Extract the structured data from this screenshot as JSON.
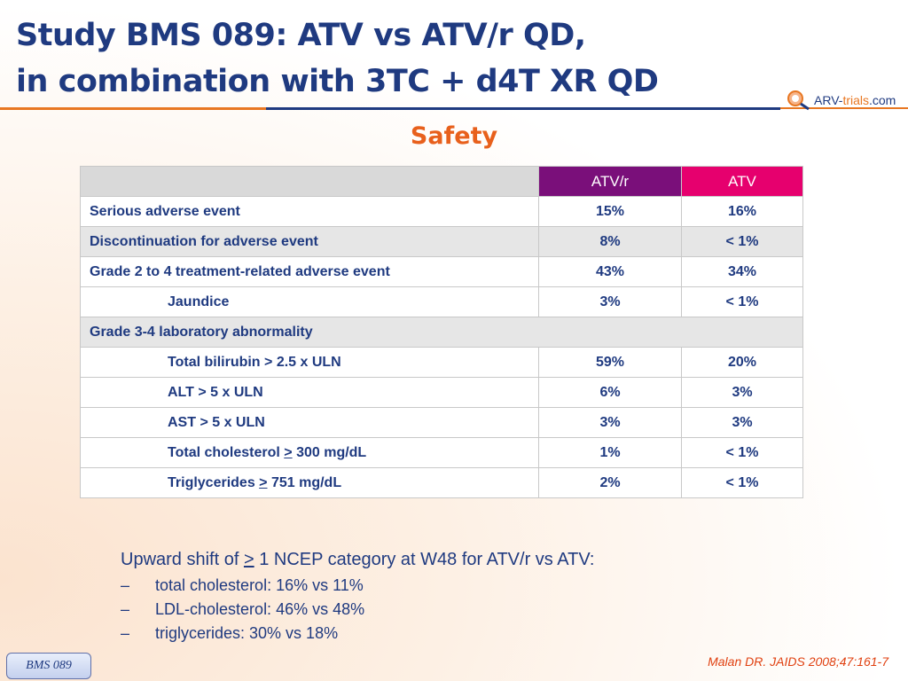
{
  "title": {
    "line1": "Study BMS 089: ATV vs ATV/r QD,",
    "line2": "in combination with 3TC + d4T XR QD"
  },
  "logo": {
    "prefix": "ARV-",
    "trials": "trials",
    "suffix": ".com"
  },
  "subtitle": "Safety",
  "table": {
    "columns": [
      "",
      "ATV/r",
      "ATV"
    ],
    "rows": [
      {
        "label": "Serious adverse event",
        "atvr": "15%",
        "atv": "16%"
      },
      {
        "label": "Discontinuation for adverse event",
        "atvr": "8%",
        "atv": "< 1%"
      },
      {
        "label": "Grade 2 to 4 treatment-related adverse event",
        "atvr": "43%",
        "atv": "34%"
      },
      {
        "label": "Jaundice",
        "atvr": "3%",
        "atv": "< 1%"
      },
      {
        "label": "Grade 3-4 laboratory abnormality"
      },
      {
        "label": "Total bilirubin > 2.5 x ULN",
        "atvr": "59%",
        "atv": "20%"
      },
      {
        "label": "ALT > 5 x ULN",
        "atvr": "6%",
        "atv": "3%"
      },
      {
        "label": "AST > 5 x ULN",
        "atvr": "3%",
        "atv": "3%"
      },
      {
        "label_pre": "Total cholesterol ",
        "label_sym": ">",
        "label_post": " 300 mg/dL",
        "atvr": "1%",
        "atv": "< 1%"
      },
      {
        "label_pre": "Triglycerides ",
        "label_sym": ">",
        "label_post": " 751 mg/dL",
        "atvr": "2%",
        "atv": "< 1%"
      }
    ]
  },
  "notes": {
    "lead_pre": "Upward shift of ",
    "lead_sym": ">",
    "lead_post": " 1 NCEP category at W48 for ATV/r vs ATV:",
    "dash": "–",
    "items": [
      "total cholesterol: 16% vs 11%",
      "LDL-cholesterol: 46% vs 48%",
      "triglycerides: 30% vs 18%"
    ]
  },
  "reference": "Malan DR. JAIDS 2008;47:161-7",
  "badge": "BMS 089",
  "colors": {
    "title": "#1f3a80",
    "accent": "#e8601c",
    "atvr_header": "#7a0f7a",
    "atv_header": "#e6006e"
  }
}
